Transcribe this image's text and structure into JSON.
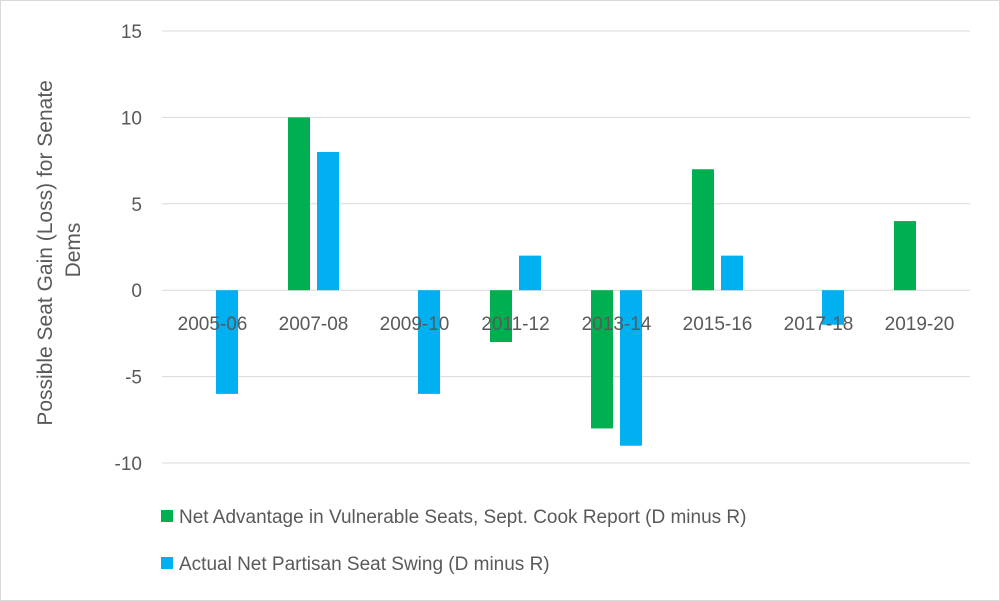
{
  "chart_data": {
    "type": "bar",
    "title": "",
    "xlabel": "",
    "ylabel_lines": [
      "Possible Seat Gain (Loss) for Senate",
      "Dems"
    ],
    "ylim": [
      -10,
      15
    ],
    "yticks": [
      15,
      10,
      5,
      0,
      -5,
      -10
    ],
    "grid": true,
    "legend_position": "bottom",
    "categories": [
      "2005-06",
      "2007-08",
      "2009-10",
      "2011-12",
      "2013-14",
      "2015-16",
      "2017-18",
      "2019-20"
    ],
    "series": [
      {
        "name": "Net Advantage in Vulnerable Seats, Sept. Cook Report (D minus R)",
        "color": "#00b050",
        "values": [
          0,
          10,
          0,
          -3,
          -8,
          7,
          0,
          4
        ]
      },
      {
        "name": "Actual Net Partisan Seat Swing (D minus R)",
        "color": "#00b0f0",
        "values": [
          -6,
          8,
          -6,
          2,
          -9,
          2,
          -2,
          null
        ]
      }
    ]
  }
}
